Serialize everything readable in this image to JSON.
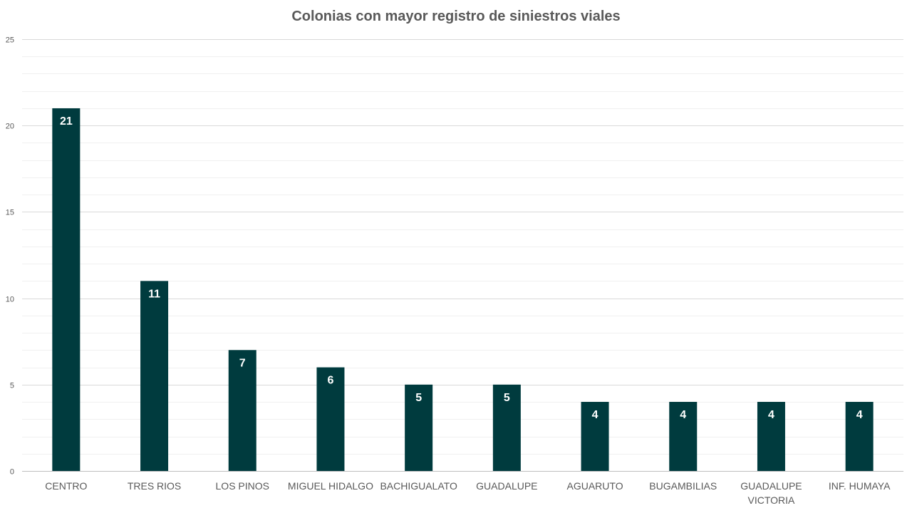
{
  "chart_data": {
    "type": "bar",
    "title": "Colonias con mayor registro de siniestros viales",
    "xlabel": "",
    "ylabel": "",
    "categories": [
      "CENTRO",
      "TRES RIOS",
      "LOS PINOS",
      "MIGUEL HIDALGO",
      "BACHIGUALATO",
      "GUADALUPE",
      "AGUARUTO",
      "BUGAMBILIAS",
      "GUADALUPE VICTORIA",
      "INF. HUMAYA"
    ],
    "category_label_lines": [
      [
        "CENTRO"
      ],
      [
        "TRES RIOS"
      ],
      [
        "LOS PINOS"
      ],
      [
        "MIGUEL HIDALGO"
      ],
      [
        "BACHIGUALATO"
      ],
      [
        "GUADALUPE"
      ],
      [
        "AGUARUTO"
      ],
      [
        "BUGAMBILIAS"
      ],
      [
        "GUADALUPE",
        "VICTORIA"
      ],
      [
        "INF. HUMAYA"
      ]
    ],
    "values": [
      21,
      11,
      7,
      6,
      5,
      5,
      4,
      4,
      4,
      4
    ],
    "ylim": [
      0,
      25
    ],
    "yticks": [
      0,
      5,
      10,
      15,
      20,
      25
    ],
    "minor_grid_step": 1,
    "grid": true,
    "data_labels": true,
    "legend": "none",
    "bar_color": "#003b3e",
    "grid_major_color": "#d9d9d9",
    "grid_minor_color": "#f0f0f0",
    "axis_color": "#bfbfbf"
  }
}
